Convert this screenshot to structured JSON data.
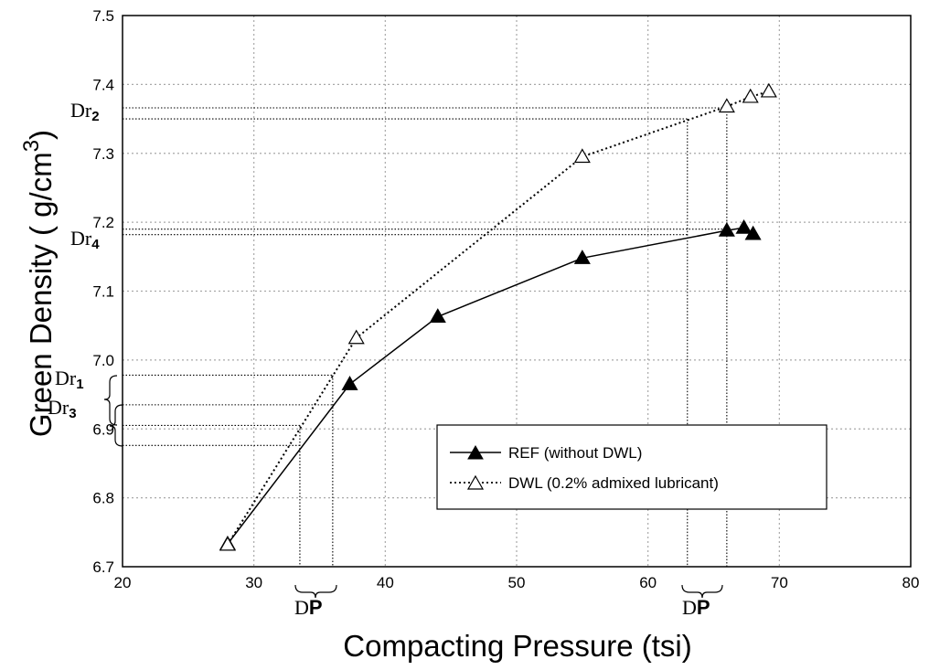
{
  "chart_data": {
    "type": "line",
    "xlabel": "Compacting Pressure (tsi)",
    "ylabel_main": "Green Density ( g/cm",
    "ylabel_sup": "3",
    "ylabel_close": ")",
    "xlim": [
      20,
      80
    ],
    "ylim": [
      6.7,
      7.5
    ],
    "xticks": [
      20,
      30,
      40,
      50,
      60,
      70,
      80
    ],
    "yticks": [
      "6.7",
      "6.8",
      "6.9",
      "7.0",
      "7.1",
      "7.2",
      "7.3",
      "7.4",
      "7.5"
    ],
    "grid": true,
    "legend_position": "lower-right",
    "series": [
      {
        "name": "REF (without DWL)",
        "line_style": "solid",
        "marker": "filled-triangle",
        "x": [
          28,
          37.3,
          44,
          55,
          66,
          67.3,
          68
        ],
        "y": [
          6.733,
          6.965,
          7.063,
          7.148,
          7.188,
          7.192,
          7.183
        ]
      },
      {
        "name": "DWL (0.2% admixed lubricant)",
        "line_style": "dotted",
        "marker": "open-triangle",
        "x": [
          28,
          37.8,
          55,
          66,
          67.8,
          69.2
        ],
        "y": [
          6.732,
          7.032,
          7.295,
          7.368,
          7.382,
          7.39
        ]
      }
    ],
    "annotations": {
      "dr1": {
        "main": "Dr",
        "sub": "1"
      },
      "dr2": {
        "main": "Dr",
        "sub": "2"
      },
      "dr3": {
        "main": "Dr",
        "sub": "3"
      },
      "dr4": {
        "main": "Dr",
        "sub": "4"
      },
      "dp_left": {
        "main": "D",
        "bold": "P"
      },
      "dp_right": {
        "main": "D",
        "bold": "P"
      }
    },
    "reference_lines": {
      "horizontal": [
        {
          "y": 7.366,
          "x_end": 66
        },
        {
          "y": 7.35,
          "x_end": 63
        },
        {
          "y": 7.19,
          "x_end": 66
        },
        {
          "y": 7.182,
          "x_end": 63
        },
        {
          "y": 6.978,
          "x_end": 36
        },
        {
          "y": 6.935,
          "x_end": 36
        },
        {
          "y": 6.905,
          "x_end": 33.5
        },
        {
          "y": 6.876,
          "x_end": 33.5
        }
      ],
      "vertical": [
        {
          "x": 33.5,
          "y_top": 6.905
        },
        {
          "x": 36,
          "y_top": 6.978
        },
        {
          "x": 63,
          "y_top": 7.35
        },
        {
          "x": 66,
          "y_top": 7.366
        }
      ]
    }
  }
}
